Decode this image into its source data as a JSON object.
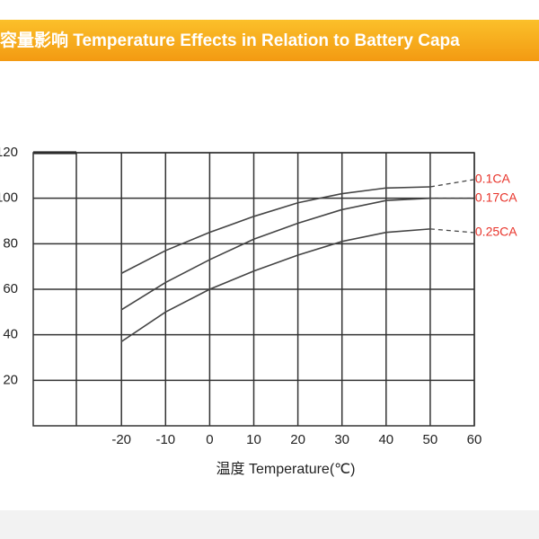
{
  "chart_data": {
    "type": "line",
    "title": "容量影响 Temperature Effects in Relation to Battery Capa",
    "xlabel": "温度  Temperature(℃)",
    "x": [
      -20,
      -10,
      0,
      10,
      20,
      30,
      40,
      50
    ],
    "series": [
      {
        "name": "0.1CA",
        "color": "#444444",
        "values": [
          67,
          77,
          85,
          92,
          98,
          102,
          104.5,
          105
        ]
      },
      {
        "name": "0.17CA",
        "color": "#444444",
        "values": [
          51,
          63,
          73,
          82,
          89,
          95,
          99,
          100
        ]
      },
      {
        "name": "0.25CA",
        "color": "#444444",
        "values": [
          37,
          50,
          60,
          68,
          75,
          81,
          85,
          86.5
        ]
      }
    ],
    "label_color": "#e8332a",
    "xlim": [
      -40,
      60
    ],
    "xticks": [
      -20,
      -10,
      0,
      10,
      20,
      30,
      40,
      50,
      60
    ],
    "ylim": [
      0,
      120
    ],
    "yticks": [
      20,
      40,
      60,
      80,
      100,
      120
    ],
    "grid": true
  }
}
